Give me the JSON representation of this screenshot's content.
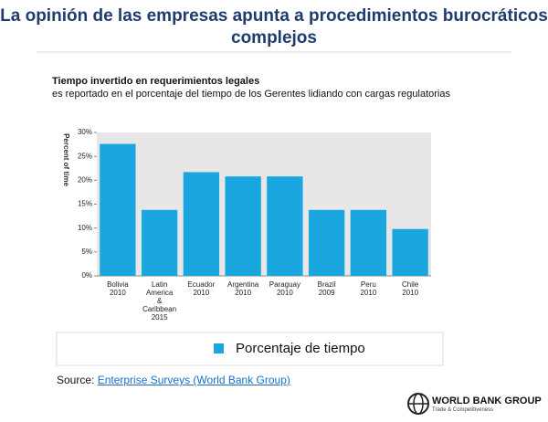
{
  "header": {
    "title": "La opinión de las empresas apunta a procedimientos burocráticos complejos"
  },
  "chart_data": {
    "type": "bar",
    "title": "Tiempo invertido en requerimientos legales",
    "subtitle": "es reportado en el porcentaje del tiempo de los Gerentes lidiando con cargas regulatorias",
    "y_label": "Percent of time",
    "categories": [
      "Bolivia\n2010",
      "Latin\nAmerica\n&\nCaribbean\n2015",
      "Ecuador\n2010",
      "Argentina\n2010",
      "Paraguay\n2010",
      "Brazil\n2009",
      "Peru\n2010",
      "Chile\n2010"
    ],
    "series": [
      {
        "name": "Porcentaje de tiempo",
        "color": "#1aa7df",
        "values": [
          27.6,
          13.8,
          21.7,
          20.8,
          20.8,
          13.8,
          13.8,
          9.8
        ]
      }
    ],
    "ylim": [
      0,
      30
    ],
    "yticks": [
      {
        "value": 0,
        "label": "0%"
      },
      {
        "value": 5,
        "label": "5%"
      },
      {
        "value": 10,
        "label": "10%"
      },
      {
        "value": 15,
        "label": "15%"
      },
      {
        "value": 20,
        "label": "20%"
      },
      {
        "value": 25,
        "label": "25%"
      },
      {
        "value": 30,
        "label": "30%"
      }
    ],
    "grid": false
  },
  "footer": {
    "source_label": "Source:",
    "source_link": "Enterprise Surveys (World Bank Group)",
    "logo": "WORLD BANK GROUP",
    "logo_tagline": "Trade & Competitiveness"
  }
}
